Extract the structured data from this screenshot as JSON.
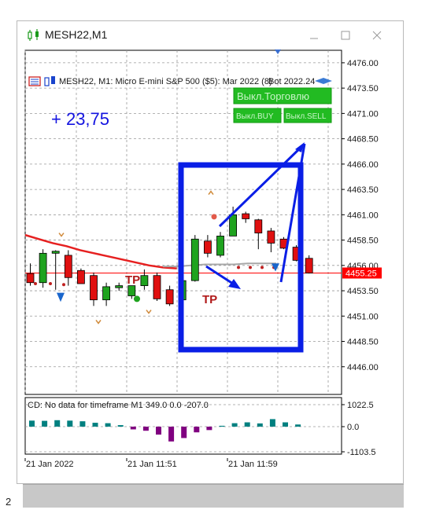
{
  "window": {
    "title": "MESH22,M1",
    "buttons": {
      "minimize_icon": "minimize-icon",
      "maximize_icon": "maximize-icon",
      "close_icon": "close-icon"
    }
  },
  "chart": {
    "header": "MESH22, M1:  Micro E-mini S&P 500 ($5): Mar 2022 (8)",
    "header_overlap": "Bot 2022.24",
    "profit": "+ 23,75",
    "buttons": {
      "trade_off": "Выкл.Торговлю",
      "buy_off": "Выкл.BUY",
      "sell_off": "Выкл.SELL"
    },
    "current_price": "4455.25",
    "price_ticks": [
      "4476.00",
      "4473.50",
      "4471.00",
      "4468.50",
      "4466.00",
      "4463.50",
      "4461.00",
      "4458.50",
      "4456.00",
      "4453.50",
      "4451.00",
      "4448.50",
      "4446.00"
    ],
    "tp_labels": [
      "TP",
      "TP"
    ],
    "colors": {
      "bull": "#1fa31f",
      "bear": "#e01010",
      "price_line": "#ff0000",
      "annotation": "#0a1ee6",
      "ma": "#e62020",
      "ind_pos": "#008080",
      "ind_neg": "#800080",
      "button_bg": "#22bb22"
    }
  },
  "indicator": {
    "label": "CD: No data for timeframe M1 349.0 0.0 -207.0",
    "ticks": [
      "1022.5",
      "0.0",
      "-1103.5"
    ]
  },
  "time_axis": [
    "21 Jan 2022",
    "21 Jan 11:51",
    "21 Jan 11:59"
  ],
  "side_number": "2",
  "chart_data": {
    "type": "candlestick",
    "ylim": [
      4443.5,
      4477.0
    ],
    "candles": [
      {
        "o": 4455.2,
        "h": 4456.2,
        "l": 4454.0,
        "c": 4454.3
      },
      {
        "o": 4454.3,
        "h": 4457.6,
        "l": 4453.8,
        "c": 4457.2
      },
      {
        "o": 4457.2,
        "h": 4457.5,
        "l": 4453.6,
        "c": 4457.4
      },
      {
        "o": 4457.0,
        "h": 4457.5,
        "l": 4454.0,
        "c": 4454.8
      },
      {
        "o": 4455.5,
        "h": 4455.7,
        "l": 4454.2,
        "c": 4454.2
      },
      {
        "o": 4455.0,
        "h": 4455.3,
        "l": 4452.0,
        "c": 4452.6
      },
      {
        "o": 4452.6,
        "h": 4454.3,
        "l": 4452.0,
        "c": 4453.9
      },
      {
        "o": 4453.8,
        "h": 4454.3,
        "l": 4453.5,
        "c": 4454.0
      },
      {
        "o": 4453.0,
        "h": 4454.0,
        "l": 4452.7,
        "c": 4454.0
      },
      {
        "o": 4454.0,
        "h": 4455.6,
        "l": 4453.6,
        "c": 4455.0
      },
      {
        "o": 4455.0,
        "h": 4455.3,
        "l": 4452.5,
        "c": 4452.7
      },
      {
        "o": 4453.6,
        "h": 4454.0,
        "l": 4452.0,
        "c": 4452.2
      },
      {
        "o": 4452.6,
        "h": 4455.0,
        "l": 4452.4,
        "c": 4454.5
      },
      {
        "o": 4454.5,
        "h": 4459.0,
        "l": 4454.4,
        "c": 4458.6
      },
      {
        "o": 4458.4,
        "h": 4459.0,
        "l": 4456.8,
        "c": 4457.2
      },
      {
        "o": 4457.0,
        "h": 4459.3,
        "l": 4456.8,
        "c": 4458.9
      },
      {
        "o": 4458.9,
        "h": 4461.8,
        "l": 4458.9,
        "c": 4461.0
      },
      {
        "o": 4461.1,
        "h": 4461.3,
        "l": 4460.2,
        "c": 4460.6
      },
      {
        "o": 4460.5,
        "h": 4460.6,
        "l": 4457.6,
        "c": 4459.2
      },
      {
        "o": 4459.4,
        "h": 4459.7,
        "l": 4457.3,
        "c": 4458.2
      },
      {
        "o": 4458.6,
        "h": 4458.8,
        "l": 4457.6,
        "c": 4457.7
      },
      {
        "o": 4457.8,
        "h": 4458.0,
        "l": 4456.4,
        "c": 4456.5
      },
      {
        "o": 4456.7,
        "h": 4457.0,
        "l": 4455.2,
        "c": 4455.25
      }
    ],
    "indicator_values": [
      280,
      270,
      300,
      280,
      250,
      180,
      160,
      70,
      -120,
      -180,
      -350,
      -650,
      -500,
      -250,
      -150,
      40,
      160,
      200,
      150,
      350,
      200,
      100
    ]
  }
}
